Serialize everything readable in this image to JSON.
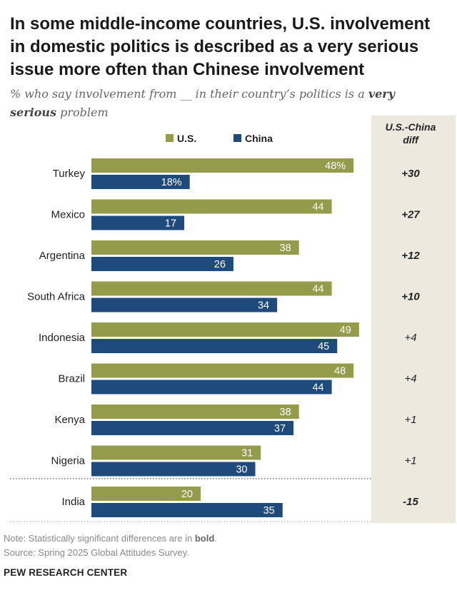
{
  "header": {
    "title": "In some middle-income countries, U.S. involvement in domestic politics is described as a very serious issue more often than Chinese involvement",
    "subtitle_part1": "% who say involvement from __ in their country’s politics is a ",
    "subtitle_emphasis": "very serious",
    "subtitle_part2": " problem"
  },
  "colors": {
    "us": "#949c4c",
    "china": "#1f4a7c",
    "diff_panel": "#ede9df"
  },
  "chart_data": {
    "type": "bar",
    "orientation": "horizontal",
    "categories": [
      "Turkey",
      "Mexico",
      "Argentina",
      "South Africa",
      "Indonesia",
      "Brazil",
      "Kenya",
      "Nigeria",
      "India"
    ],
    "series": [
      {
        "name": "U.S.",
        "values": [
          48,
          44,
          38,
          44,
          49,
          48,
          38,
          31,
          20
        ],
        "labels": [
          "48%",
          "44",
          "38",
          "44",
          "49",
          "48",
          "38",
          "31",
          "20"
        ]
      },
      {
        "name": "China",
        "values": [
          18,
          17,
          26,
          34,
          45,
          44,
          37,
          30,
          35
        ],
        "labels": [
          "18%",
          "17",
          "26",
          "34",
          "45",
          "44",
          "37",
          "30",
          "35"
        ]
      }
    ],
    "diff_header_line1": "U.S.-China",
    "diff_header_line2": "diff",
    "diff": [
      "+30",
      "+27",
      "+12",
      "+10",
      "+4",
      "+4",
      "+1",
      "+1",
      "-15"
    ],
    "diff_significant": [
      true,
      true,
      true,
      true,
      false,
      false,
      false,
      false,
      true
    ],
    "xlim": [
      0,
      50
    ],
    "legend_position": "top"
  },
  "footer": {
    "note_prefix": "Note: Statistically significant differences are in ",
    "note_bold": "bold",
    "note_suffix": ".",
    "source": "Source: Spring 2025 Global Attitudes Survey.",
    "brand": "PEW RESEARCH CENTER"
  }
}
